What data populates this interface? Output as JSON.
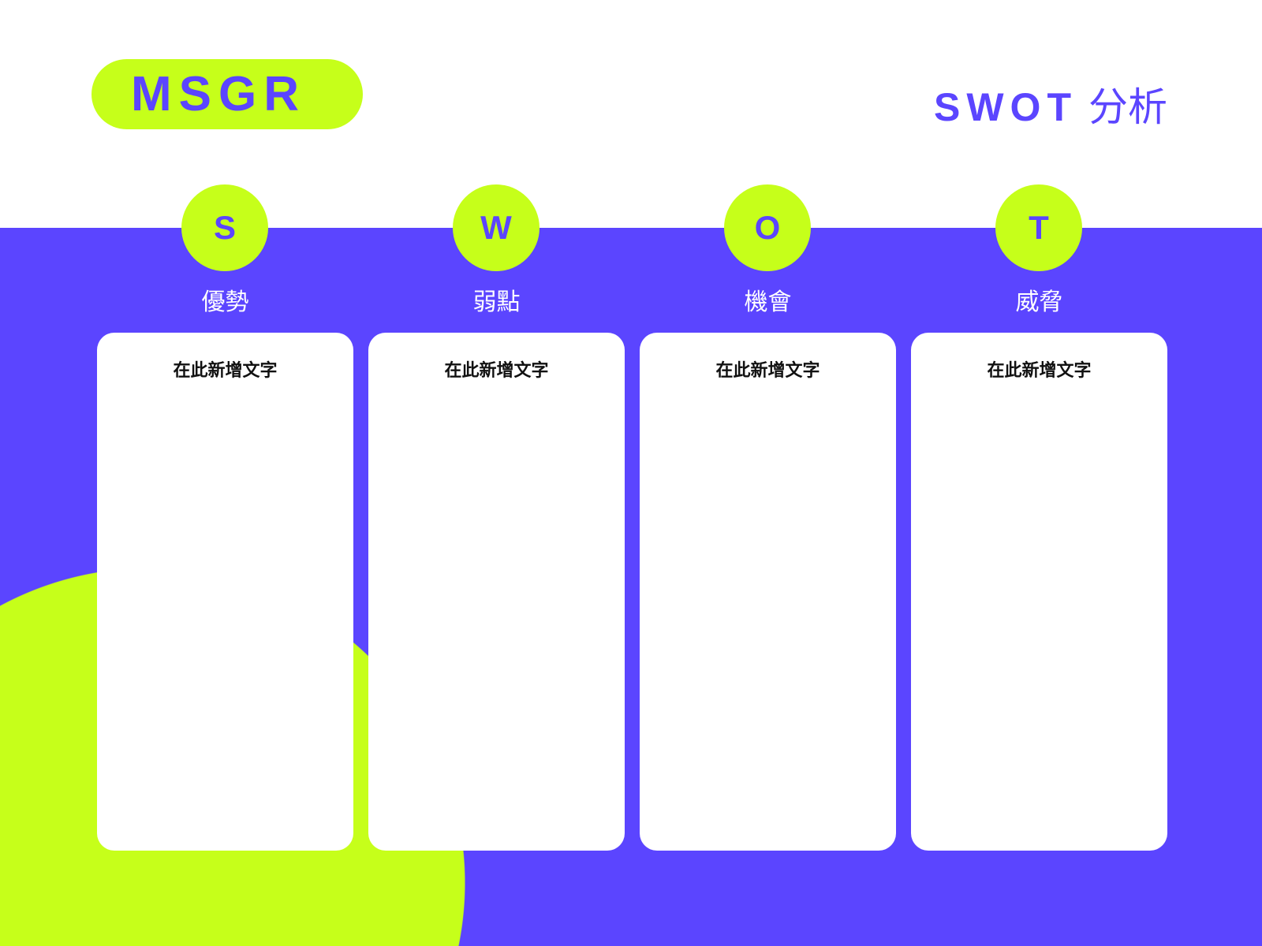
{
  "colors": {
    "primary": "#5B45FF",
    "accent": "#C6FF1A",
    "card": "#FFFFFF"
  },
  "logo": {
    "text": "MSGR"
  },
  "title": {
    "en": "SWOT",
    "zh": "分析"
  },
  "columns": [
    {
      "letter": "S",
      "label": "優勢",
      "card_text": "在此新增文字"
    },
    {
      "letter": "W",
      "label": "弱點",
      "card_text": "在此新增文字"
    },
    {
      "letter": "O",
      "label": "機會",
      "card_text": "在此新增文字"
    },
    {
      "letter": "T",
      "label": "威脅",
      "card_text": "在此新增文字"
    }
  ]
}
